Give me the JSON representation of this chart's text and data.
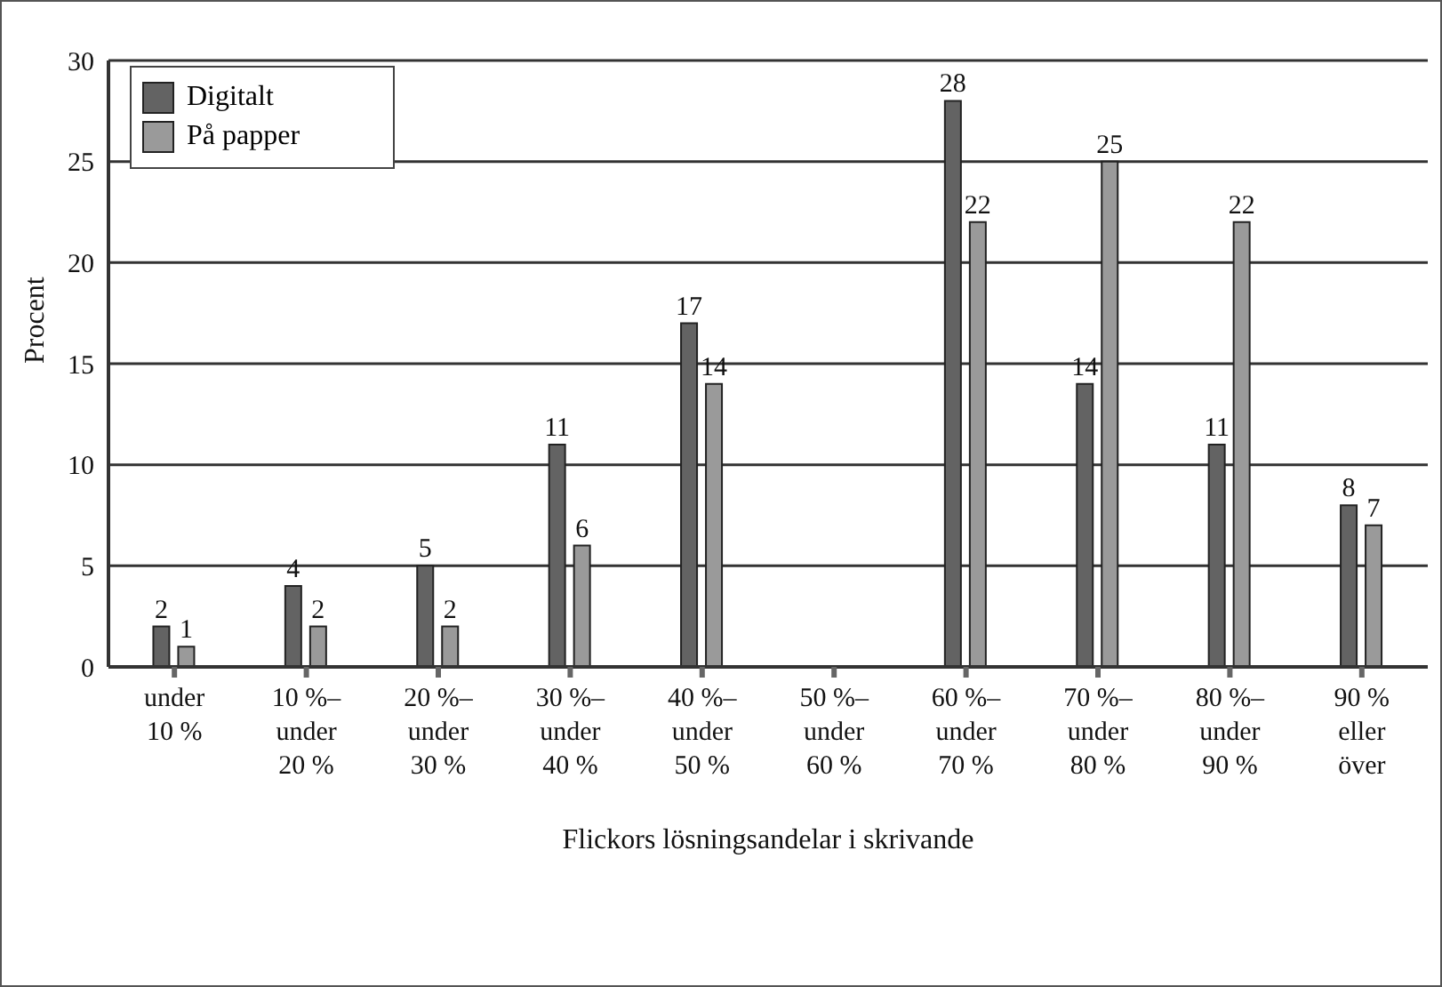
{
  "chart_data": {
    "type": "bar",
    "xlabel": "Flickors lösningsandelar i skrivande",
    "ylabel": "Procent",
    "categories": [
      "under 10 %",
      "10 %– under 20 %",
      "20 %– under 30 %",
      "30 %– under 40 %",
      "40 %– under 50 %",
      "50 %– under 60 %",
      "60 %– under 70 %",
      "70 %– under 80 %",
      "80 %– under 90 %",
      "90 % eller över"
    ],
    "series": [
      {
        "name": "Digitalt",
        "color": "#636363",
        "values": [
          2,
          4,
          5,
          11,
          17,
          null,
          28,
          14,
          11,
          8
        ]
      },
      {
        "name": "På papper",
        "color": "#9a9a9a",
        "values": [
          1,
          2,
          2,
          6,
          14,
          null,
          22,
          25,
          22,
          7
        ]
      }
    ],
    "ylim": [
      0,
      30
    ],
    "yticks": [
      0,
      5,
      10,
      15,
      20,
      25,
      30
    ],
    "grid": "y",
    "legend": "top left",
    "data_labels": true
  }
}
